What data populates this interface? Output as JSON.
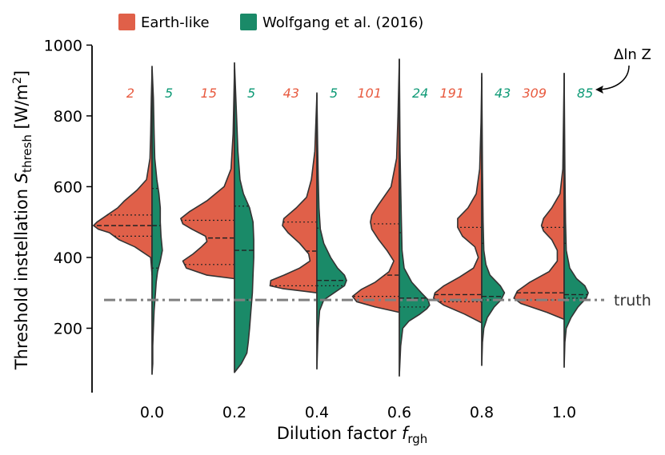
{
  "chart_data": {
    "type": "violin",
    "xlabel_main": "Dilution factor ",
    "xlabel_sym": "f",
    "xlabel_sub": "rgh",
    "ylabel_main": "Threshold instellation ",
    "ylabel_sym": "S",
    "ylabel_sub": "thresh",
    "ylabel_units": " [W/m",
    "ylabel_sup": "2",
    "ylabel_close": "]",
    "ylim": [
      0,
      1000
    ],
    "yticks": [
      "200",
      "400",
      "600",
      "800",
      "1000"
    ],
    "ytick_values": [
      200,
      400,
      600,
      800,
      1000
    ],
    "categories": [
      "0.0",
      "0.2",
      "0.4",
      "0.6",
      "0.8",
      "1.0"
    ],
    "legend": [
      {
        "name": "Earth-like",
        "color": "#e06049"
      },
      {
        "name": "Wolfgang et al. (2016)",
        "color": "#1a8a68"
      }
    ],
    "truth": {
      "value": 280,
      "label": "truth"
    },
    "dlnz_label": "Δln Z",
    "series": [
      {
        "name": "Earth-like",
        "color": "#e06049",
        "label_color": "#e85a3f",
        "dlnz_values": [
          "2",
          "15",
          "43",
          "101",
          "191",
          "309"
        ],
        "quartiles": [
          [
            460,
            490,
            520
          ],
          [
            380,
            455,
            505
          ],
          [
            320,
            418,
            500
          ],
          [
            290,
            350,
            495
          ],
          [
            275,
            295,
            485
          ],
          [
            280,
            300,
            485
          ]
        ],
        "range": [
          [
            350,
            930
          ],
          [
            340,
            930
          ],
          [
            300,
            860
          ],
          [
            245,
            960
          ],
          [
            215,
            910
          ],
          [
            225,
            920
          ]
        ],
        "profiles": [
          [
            [
              350,
              0
            ],
            [
              400,
              2
            ],
            [
              430,
              25
            ],
            [
              450,
              48
            ],
            [
              470,
              62
            ],
            [
              480,
              78
            ],
            [
              490,
              85
            ],
            [
              500,
              80
            ],
            [
              520,
              65
            ],
            [
              540,
              50
            ],
            [
              560,
              40
            ],
            [
              590,
              22
            ],
            [
              620,
              8
            ],
            [
              680,
              3
            ],
            [
              750,
              2
            ],
            [
              850,
              1
            ],
            [
              930,
              0
            ]
          ],
          [
            [
              340,
              0
            ],
            [
              350,
              40
            ],
            [
              370,
              70
            ],
            [
              390,
              75
            ],
            [
              410,
              60
            ],
            [
              430,
              48
            ],
            [
              445,
              40
            ],
            [
              460,
              42
            ],
            [
              480,
              62
            ],
            [
              495,
              75
            ],
            [
              510,
              78
            ],
            [
              530,
              65
            ],
            [
              560,
              40
            ],
            [
              600,
              15
            ],
            [
              650,
              5
            ],
            [
              750,
              2
            ],
            [
              930,
              0
            ]
          ],
          [
            [
              300,
              0
            ],
            [
              312,
              50
            ],
            [
              320,
              68
            ],
            [
              335,
              67
            ],
            [
              350,
              48
            ],
            [
              370,
              25
            ],
            [
              390,
              10
            ],
            [
              410,
              12
            ],
            [
              440,
              25
            ],
            [
              470,
              42
            ],
            [
              490,
              50
            ],
            [
              510,
              48
            ],
            [
              540,
              30
            ],
            [
              570,
              15
            ],
            [
              620,
              8
            ],
            [
              700,
              3
            ],
            [
              860,
              0
            ]
          ],
          [
            [
              245,
              0
            ],
            [
              260,
              35
            ],
            [
              275,
              62
            ],
            [
              290,
              68
            ],
            [
              310,
              55
            ],
            [
              330,
              35
            ],
            [
              360,
              15
            ],
            [
              390,
              8
            ],
            [
              420,
              18
            ],
            [
              450,
              30
            ],
            [
              480,
              40
            ],
            [
              500,
              42
            ],
            [
              520,
              40
            ],
            [
              550,
              30
            ],
            [
              600,
              12
            ],
            [
              680,
              4
            ],
            [
              800,
              2
            ],
            [
              960,
              0
            ]
          ],
          [
            [
              215,
              0
            ],
            [
              240,
              25
            ],
            [
              265,
              55
            ],
            [
              285,
              70
            ],
            [
              300,
              68
            ],
            [
              320,
              55
            ],
            [
              345,
              32
            ],
            [
              370,
              12
            ],
            [
              400,
              5
            ],
            [
              430,
              10
            ],
            [
              460,
              28
            ],
            [
              485,
              35
            ],
            [
              510,
              35
            ],
            [
              540,
              20
            ],
            [
              580,
              8
            ],
            [
              650,
              3
            ],
            [
              780,
              1
            ],
            [
              910,
              0
            ]
          ],
          [
            [
              225,
              0
            ],
            [
              245,
              25
            ],
            [
              270,
              63
            ],
            [
              285,
              73
            ],
            [
              305,
              68
            ],
            [
              330,
              50
            ],
            [
              360,
              22
            ],
            [
              390,
              10
            ],
            [
              420,
              10
            ],
            [
              450,
              18
            ],
            [
              475,
              30
            ],
            [
              490,
              33
            ],
            [
              510,
              30
            ],
            [
              540,
              18
            ],
            [
              580,
              6
            ],
            [
              650,
              2
            ],
            [
              920,
              0
            ]
          ]
        ]
      },
      {
        "name": "Wolfgang et al. (2016)",
        "color": "#1a8a68",
        "label_color": "#0e9a76",
        "dlnz_values": [
          "5",
          "5",
          "5",
          "24",
          "43",
          "85"
        ],
        "quartiles": [
          [
            370,
            490,
            595
          ],
          [
            280,
            420,
            545
          ],
          [
            320,
            335,
            483
          ],
          [
            260,
            285,
            470
          ],
          [
            280,
            290,
            440
          ],
          [
            285,
            295,
            440
          ]
        ],
        "range": [
          [
            70,
            940
          ],
          [
            75,
            950
          ],
          [
            85,
            865
          ],
          [
            65,
            960
          ],
          [
            95,
            920
          ],
          [
            90,
            920
          ]
        ],
        "profiles": [
          [
            [
              70,
              0
            ],
            [
              100,
              1
            ],
            [
              150,
              1
            ],
            [
              200,
              2
            ],
            [
              250,
              3
            ],
            [
              300,
              5
            ],
            [
              330,
              6
            ],
            [
              360,
              8
            ],
            [
              390,
              12
            ],
            [
              420,
              15
            ],
            [
              460,
              13
            ],
            [
              500,
              12
            ],
            [
              540,
              12
            ],
            [
              580,
              10
            ],
            [
              620,
              7
            ],
            [
              680,
              4
            ],
            [
              750,
              3
            ],
            [
              850,
              2
            ],
            [
              940,
              0
            ]
          ],
          [
            [
              75,
              0
            ],
            [
              100,
              10
            ],
            [
              130,
              18
            ],
            [
              160,
              20
            ],
            [
              200,
              22
            ],
            [
              250,
              24
            ],
            [
              300,
              26
            ],
            [
              350,
              27
            ],
            [
              400,
              28
            ],
            [
              450,
              28
            ],
            [
              500,
              27
            ],
            [
              540,
              22
            ],
            [
              580,
              13
            ],
            [
              620,
              8
            ],
            [
              700,
              5
            ],
            [
              800,
              3
            ],
            [
              950,
              0
            ]
          ],
          [
            [
              85,
              0
            ],
            [
              150,
              1
            ],
            [
              200,
              2
            ],
            [
              250,
              4
            ],
            [
              280,
              10
            ],
            [
              300,
              25
            ],
            [
              320,
              40
            ],
            [
              335,
              43
            ],
            [
              350,
              40
            ],
            [
              370,
              30
            ],
            [
              400,
              20
            ],
            [
              440,
              10
            ],
            [
              480,
              5
            ],
            [
              540,
              3
            ],
            [
              620,
              2
            ],
            [
              720,
              1
            ],
            [
              865,
              0
            ]
          ],
          [
            [
              65,
              0
            ],
            [
              150,
              2
            ],
            [
              200,
              5
            ],
            [
              220,
              14
            ],
            [
              240,
              30
            ],
            [
              255,
              40
            ],
            [
              265,
              44
            ],
            [
              280,
              42
            ],
            [
              300,
              32
            ],
            [
              330,
              18
            ],
            [
              370,
              7
            ],
            [
              420,
              4
            ],
            [
              500,
              3
            ],
            [
              600,
              2
            ],
            [
              700,
              1
            ],
            [
              960,
              0
            ]
          ],
          [
            [
              95,
              0
            ],
            [
              160,
              1
            ],
            [
              200,
              3
            ],
            [
              230,
              8
            ],
            [
              260,
              18
            ],
            [
              280,
              28
            ],
            [
              300,
              33
            ],
            [
              320,
              27
            ],
            [
              350,
              12
            ],
            [
              380,
              6
            ],
            [
              420,
              3
            ],
            [
              500,
              2
            ],
            [
              650,
              1
            ],
            [
              920,
              0
            ]
          ],
          [
            [
              90,
              0
            ],
            [
              160,
              1
            ],
            [
              200,
              3
            ],
            [
              230,
              10
            ],
            [
              260,
              20
            ],
            [
              285,
              32
            ],
            [
              300,
              35
            ],
            [
              320,
              30
            ],
            [
              340,
              18
            ],
            [
              370,
              8
            ],
            [
              420,
              3
            ],
            [
              500,
              2
            ],
            [
              650,
              1
            ],
            [
              920,
              0
            ]
          ]
        ]
      }
    ]
  }
}
